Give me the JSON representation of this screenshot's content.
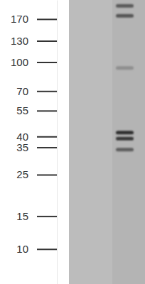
{
  "chart_data": {
    "type": "blot",
    "log": "y",
    "ylim": [
      215,
      6.5
    ],
    "yticks": [
      170,
      130,
      100,
      70,
      55,
      40,
      35,
      25,
      15,
      10
    ],
    "values": [
      200,
      177,
      93,
      42,
      39,
      34
    ],
    "colors": [
      "#5a5a5a",
      "#555555",
      "#8e8e8e",
      "#2e2e2e",
      "#383838",
      "#5e5e5e"
    ],
    "tick_labels": "y"
  }
}
